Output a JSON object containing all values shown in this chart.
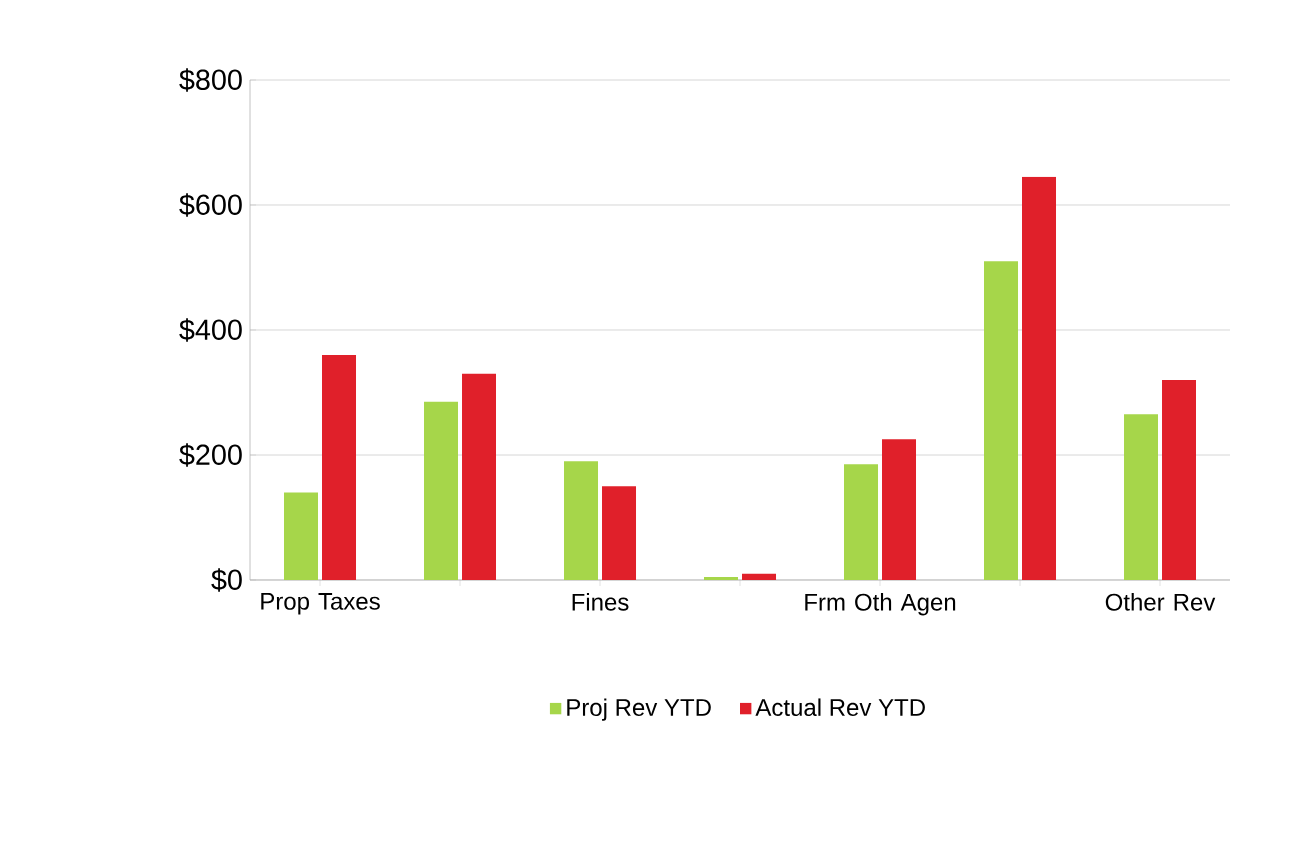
{
  "chart_data": {
    "type": "bar",
    "categories": [
      "Prop Taxes",
      null,
      "Fines",
      null,
      "Frm Oth Agen",
      null,
      "Other Rev"
    ],
    "series": [
      {
        "name": "Proj Rev YTD",
        "color": "#a6d64a",
        "values": [
          140,
          285,
          190,
          5,
          185,
          510,
          265
        ]
      },
      {
        "name": "Actual Rev YTD",
        "color": "#e0202a",
        "values": [
          360,
          330,
          150,
          10,
          225,
          645,
          320
        ]
      }
    ],
    "ylim": [
      0,
      800
    ],
    "yticks": [
      {
        "value": 0,
        "label": "$0"
      },
      {
        "value": 200,
        "label": "$200"
      },
      {
        "value": 400,
        "label": "$400"
      },
      {
        "value": 600,
        "label": "$600"
      },
      {
        "value": 800,
        "label": "$800"
      }
    ],
    "grid": "y",
    "legend": "bottom"
  }
}
